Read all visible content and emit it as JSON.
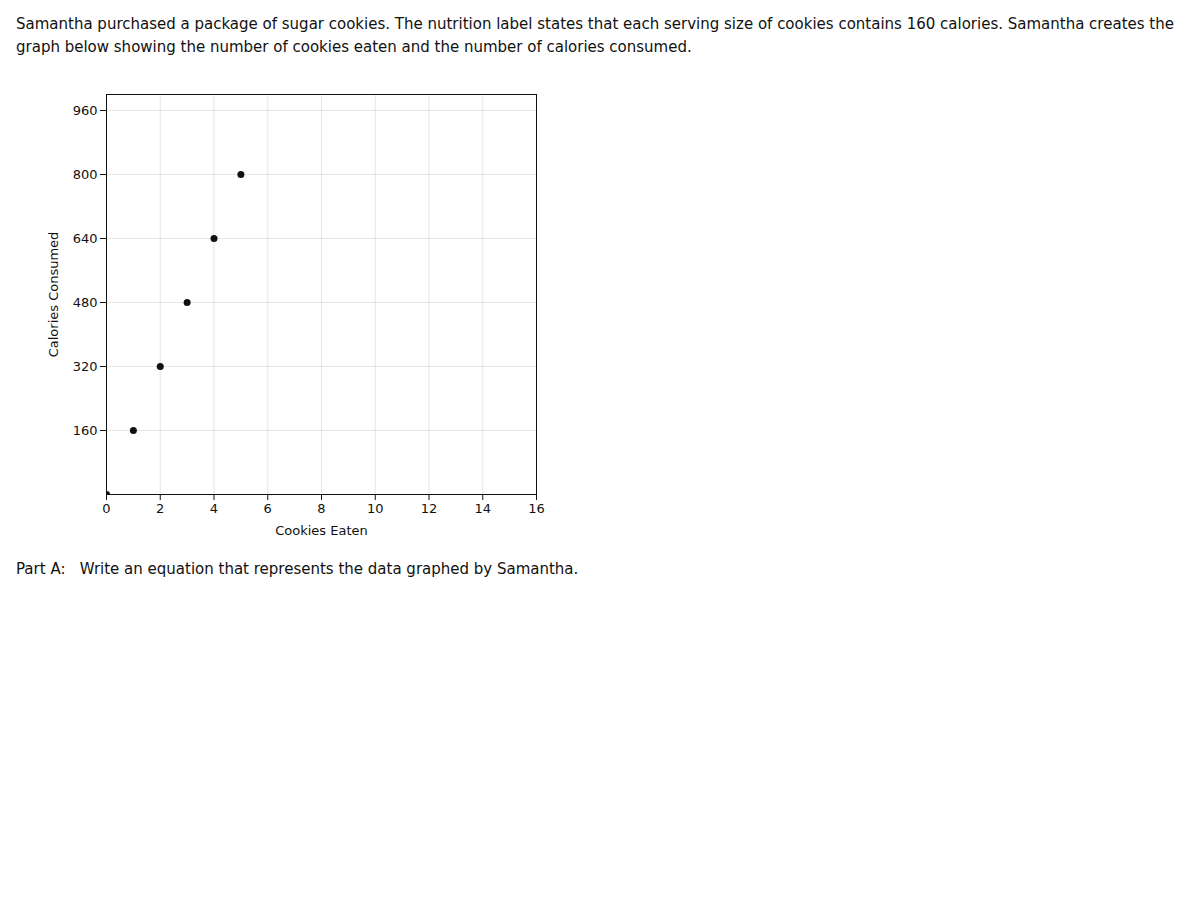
{
  "chart_data": {
    "type": "scatter",
    "annotations": [
      "Samantha purchased a package of sugar cookies.  The nutrition label states that each serving size of cookies contains 160 calories.  Samantha creates the",
      "graph below showing the number of cookies eaten and the number of calories consumed.",
      "Part A:   Write an equation that represents the data graphed by Samantha."
    ],
    "x": [
      0,
      1,
      2,
      3,
      4,
      5
    ],
    "values": [
      0,
      160,
      320,
      480,
      640,
      800
    ],
    "xlabel": "Cookies Eaten",
    "ylabel": "Calories Consumed",
    "xlim": [
      0,
      16
    ],
    "ylim": [
      0,
      1000
    ],
    "xticks": [
      0,
      2,
      4,
      6,
      8,
      10,
      12,
      14,
      16
    ],
    "yticks": [
      160,
      320,
      480,
      640,
      800,
      960
    ],
    "grid": true,
    "color": "#111111"
  }
}
